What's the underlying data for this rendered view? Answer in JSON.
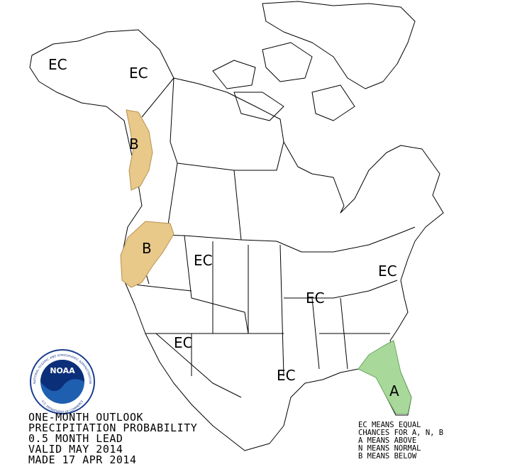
{
  "map": {
    "labels": [
      "EC",
      "EC",
      "B",
      "B",
      "EC",
      "EC",
      "EC",
      "EC",
      "EC",
      "A"
    ]
  },
  "title_lines": [
    "ONE-MONTH OUTLOOK",
    "PRECIPITATION PROBABILITY",
    "0.5 MONTH LEAD",
    "VALID MAY 2014",
    "MADE 17 APR 2014"
  ],
  "legend_lines": [
    "EC MEANS EQUAL",
    "CHANCES FOR A, N, B",
    "A MEANS ABOVE",
    "N MEANS NORMAL",
    "B MEANS BELOW"
  ],
  "logo": {
    "name": "NOAA",
    "ring_top": "NATIONAL OCEANIC AND ATMOSPHERIC ADMINISTRATION",
    "ring_bottom": "U.S. DEPARTMENT OF COMMERCE"
  }
}
